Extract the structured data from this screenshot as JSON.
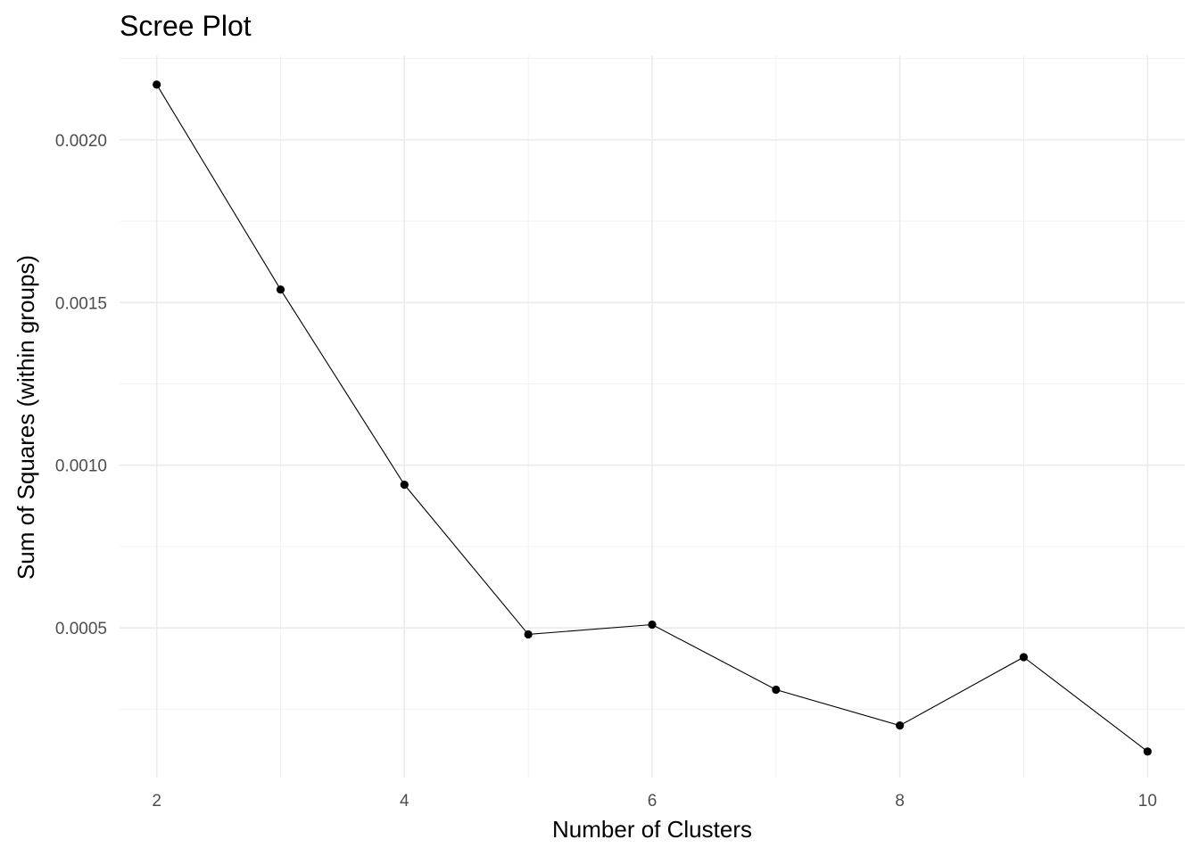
{
  "chart_data": {
    "type": "line",
    "title": "Scree Plot",
    "xlabel": "Number of Clusters",
    "ylabel": "Sum of Squares (within groups)",
    "x": [
      2,
      3,
      4,
      5,
      6,
      7,
      8,
      9,
      10
    ],
    "y": [
      0.00217,
      0.00154,
      0.00094,
      0.00048,
      0.00051,
      0.00031,
      0.0002,
      0.00041,
      0.00012
    ],
    "xlim": [
      1.7,
      10.3
    ],
    "ylim": [
      4e-05,
      0.00226
    ],
    "xticks": [
      2,
      4,
      6,
      8,
      10
    ],
    "xtick_labels": [
      "2",
      "4",
      "6",
      "8",
      "10"
    ],
    "yticks": [
      0.0005,
      0.001,
      0.0015,
      0.002
    ],
    "ytick_labels": [
      "0.0005",
      "0.0010",
      "0.0015",
      "0.0020"
    ],
    "grid": true,
    "legend": "none",
    "colors": {
      "line": "#000000",
      "point": "#000000",
      "grid": "#ebebeb",
      "tick_text": "#4d4d4d"
    }
  }
}
